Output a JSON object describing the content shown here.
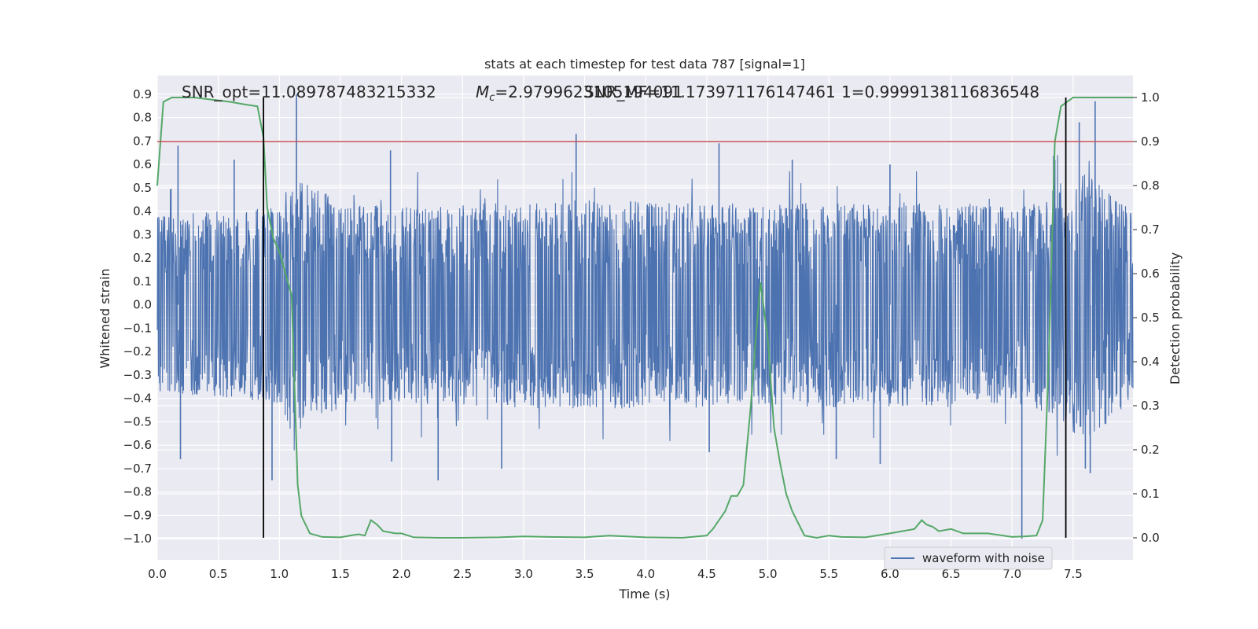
{
  "chart_data": {
    "type": "line",
    "title": "stats at each timestep for test data 787 [signal=1]",
    "xlabel": "Time (s)",
    "ylabel": "Whitened strain",
    "y2label": "Detection probability",
    "xlim": [
      0.0,
      7.99
    ],
    "ylim": [
      -1.09,
      0.98
    ],
    "y2lim": [
      -0.05,
      1.05
    ],
    "x_ticks": [
      "0.0",
      "0.5",
      "1.0",
      "1.5",
      "2.0",
      "2.5",
      "3.0",
      "3.5",
      "4.0",
      "4.5",
      "5.0",
      "5.5",
      "6.0",
      "6.5",
      "7.0",
      "7.5"
    ],
    "y_ticks": [
      "0.9",
      "0.8",
      "0.7",
      "0.6",
      "0.5",
      "0.4",
      "0.3",
      "0.2",
      "0.1",
      "0.0",
      "−0.1",
      "−0.2",
      "−0.3",
      "−0.4",
      "−0.5",
      "−0.6",
      "−0.7",
      "−0.8",
      "−0.9",
      "−1.0"
    ],
    "y2_ticks": [
      "1.0",
      "0.9",
      "0.8",
      "0.7",
      "0.6",
      "0.5",
      "0.4",
      "0.3",
      "0.2",
      "0.1",
      "0.0"
    ],
    "grid": true,
    "background": "#eaeaf2",
    "annotations": [
      "SNR_opt=11.089787483215332",
      "=2.9799623105194091",
      "SNR_MF=11.173971176147461",
      "1=0.9999138116836548"
    ],
    "mc_symbol": "M",
    "mc_subscript": "c",
    "threshold": {
      "y2": 0.9,
      "color": "#c44e52"
    },
    "vertical_lines": [
      0.87,
      7.44
    ],
    "series": [
      {
        "name": "waveform with noise",
        "color": "#4c72b0",
        "axis": "left",
        "envelope_upper": [
          [
            0.0,
            0.38
          ],
          [
            0.5,
            0.4
          ],
          [
            1.0,
            0.42
          ],
          [
            1.1,
            0.55
          ],
          [
            1.5,
            0.44
          ],
          [
            2.0,
            0.42
          ],
          [
            2.5,
            0.43
          ],
          [
            3.0,
            0.44
          ],
          [
            3.5,
            0.45
          ],
          [
            4.0,
            0.44
          ],
          [
            4.5,
            0.44
          ],
          [
            5.0,
            0.43
          ],
          [
            5.5,
            0.44
          ],
          [
            6.0,
            0.44
          ],
          [
            6.5,
            0.43
          ],
          [
            7.0,
            0.42
          ],
          [
            7.3,
            0.48
          ],
          [
            7.6,
            0.6
          ],
          [
            7.99,
            0.4
          ]
        ],
        "spikes_up": [
          [
            0.17,
            0.68
          ],
          [
            0.63,
            0.62
          ],
          [
            1.14,
            0.9
          ],
          [
            1.91,
            0.66
          ],
          [
            3.43,
            0.73
          ],
          [
            4.6,
            0.69
          ],
          [
            5.2,
            0.62
          ],
          [
            6.0,
            0.6
          ],
          [
            7.35,
            0.62
          ],
          [
            7.55,
            0.78
          ],
          [
            7.68,
            0.87
          ]
        ],
        "spikes_down": [
          [
            0.19,
            -0.66
          ],
          [
            0.94,
            -0.75
          ],
          [
            1.92,
            -0.67
          ],
          [
            2.3,
            -0.75
          ],
          [
            2.82,
            -0.7
          ],
          [
            4.52,
            -0.63
          ],
          [
            5.56,
            -0.66
          ],
          [
            5.92,
            -0.68
          ],
          [
            7.08,
            -1.0
          ],
          [
            7.6,
            -0.7
          ],
          [
            7.64,
            -0.72
          ]
        ]
      },
      {
        "name": "detection probability",
        "color": "#55a868",
        "axis": "right",
        "x": [
          0.0,
          0.05,
          0.12,
          0.3,
          0.6,
          0.7,
          0.82,
          0.87,
          0.9,
          0.95,
          1.0,
          1.05,
          1.1,
          1.15,
          1.18,
          1.25,
          1.35,
          1.5,
          1.6,
          1.65,
          1.7,
          1.75,
          1.8,
          1.85,
          1.95,
          2.0,
          2.1,
          2.3,
          2.5,
          2.8,
          3.0,
          3.2,
          3.5,
          3.7,
          4.0,
          4.3,
          4.5,
          4.55,
          4.65,
          4.7,
          4.75,
          4.8,
          4.86,
          4.9,
          4.94,
          5.0,
          5.05,
          5.1,
          5.15,
          5.2,
          5.3,
          5.4,
          5.5,
          5.6,
          5.8,
          6.0,
          6.1,
          6.2,
          6.26,
          6.3,
          6.35,
          6.4,
          6.5,
          6.6,
          6.8,
          7.0,
          7.1,
          7.2,
          7.25,
          7.3,
          7.35,
          7.4,
          7.45,
          7.5,
          7.6,
          7.99
        ],
        "y": [
          0.8,
          0.99,
          1.0,
          1.0,
          0.99,
          0.985,
          0.98,
          0.91,
          0.75,
          0.68,
          0.65,
          0.6,
          0.55,
          0.12,
          0.05,
          0.01,
          0.002,
          0.001,
          0.006,
          0.008,
          0.005,
          0.04,
          0.03,
          0.015,
          0.01,
          0.01,
          0.001,
          0.0,
          0.0,
          0.001,
          0.003,
          0.002,
          0.001,
          0.005,
          0.001,
          0.0,
          0.005,
          0.02,
          0.06,
          0.095,
          0.095,
          0.12,
          0.3,
          0.45,
          0.58,
          0.45,
          0.25,
          0.17,
          0.1,
          0.06,
          0.005,
          0.0,
          0.005,
          0.002,
          0.001,
          0.01,
          0.015,
          0.02,
          0.04,
          0.03,
          0.025,
          0.015,
          0.02,
          0.01,
          0.01,
          0.002,
          0.003,
          0.005,
          0.04,
          0.4,
          0.9,
          0.98,
          0.99,
          1.0,
          1.0,
          1.0
        ]
      }
    ]
  },
  "legend": {
    "label": "waveform with noise"
  }
}
